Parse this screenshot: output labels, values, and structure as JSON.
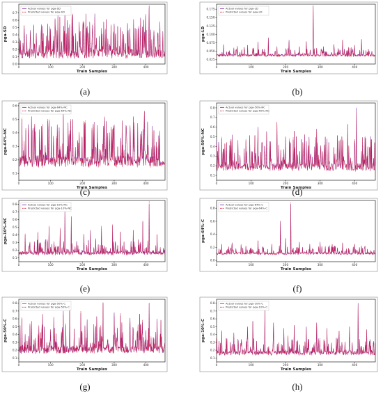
{
  "chart_data": [
    {
      "panel_label": "(a)",
      "type": "line",
      "xlabel": "Train Samples",
      "ylabel": "pga-SD",
      "xticks": [
        0,
        100,
        200,
        300,
        400
      ],
      "yticks": [
        "0.0",
        "0.1",
        "0.2",
        "0.3",
        "0.4",
        "0.5",
        "0.6",
        "0.7"
      ],
      "ylim": [
        0.0,
        0.82
      ],
      "xlim": [
        0,
        460
      ],
      "series": [
        {
          "name": "Actual values for pga-SD",
          "color": "#7b1fa2",
          "style": "solid"
        },
        {
          "name": "Predicted values for pga-SD",
          "color": "#d8203a",
          "style": "dashed"
        }
      ],
      "baseline": 0.08,
      "spike_scale": 0.5,
      "peaks": [
        [
          5,
          0.32
        ],
        [
          25,
          0.41
        ],
        [
          50,
          0.27
        ],
        [
          70,
          0.4
        ],
        [
          100,
          0.48
        ],
        [
          120,
          0.46
        ],
        [
          145,
          0.75
        ],
        [
          160,
          0.54
        ],
        [
          185,
          0.31
        ],
        [
          205,
          0.56
        ],
        [
          220,
          0.43
        ],
        [
          240,
          0.36
        ],
        [
          260,
          0.47
        ],
        [
          290,
          0.52
        ],
        [
          300,
          0.55
        ],
        [
          330,
          0.41
        ],
        [
          350,
          0.37
        ],
        [
          370,
          0.48
        ],
        [
          395,
          0.44
        ],
        [
          410,
          0.8
        ],
        [
          430,
          0.23
        ]
      ],
      "seed": 11
    },
    {
      "panel_label": "(b)",
      "type": "line",
      "xlabel": "Train Samples",
      "ylabel": "pga-LD",
      "xticks": [
        0,
        100,
        200,
        300,
        400
      ],
      "yticks": [
        "0.025",
        "0.050",
        "0.075",
        "0.100",
        "0.125",
        "0.150",
        "0.175"
      ],
      "ylim": [
        0.012,
        0.19
      ],
      "xlim": [
        0,
        460
      ],
      "series": [
        {
          "name": "Actual values for pga-LD",
          "color": "#7b1fa2",
          "style": "solid"
        },
        {
          "name": "Predicted values for pga-LD",
          "color": "#d8203a",
          "style": "dashed"
        }
      ],
      "baseline": 0.035,
      "spike_scale": 0.022,
      "peaks": [
        [
          20,
          0.07
        ],
        [
          60,
          0.065
        ],
        [
          90,
          0.068
        ],
        [
          120,
          0.078
        ],
        [
          150,
          0.09
        ],
        [
          175,
          0.064
        ],
        [
          210,
          0.083
        ],
        [
          240,
          0.063
        ],
        [
          260,
          0.078
        ],
        [
          280,
          0.186
        ],
        [
          310,
          0.064
        ],
        [
          340,
          0.07
        ],
        [
          365,
          0.082
        ],
        [
          400,
          0.068
        ],
        [
          420,
          0.085
        ]
      ],
      "seed": 23
    },
    {
      "panel_label": "(c)",
      "type": "line",
      "xlabel": "Train Samples",
      "ylabel": "pga-64%-NC",
      "xticks": [
        0,
        100,
        200,
        300,
        400
      ],
      "yticks": [
        "0.1",
        "0.2",
        "0.3",
        "0.4",
        "0.5",
        "0.6"
      ],
      "ylim": [
        0.05,
        0.62
      ],
      "xlim": [
        0,
        460
      ],
      "series": [
        {
          "name": "Actual values for pga-64%-NC",
          "color": "#7b1fa2",
          "style": "solid"
        },
        {
          "name": "Predicted values for pga-64%-NC",
          "color": "#d8203a",
          "style": "dashed"
        }
      ],
      "baseline": 0.15,
      "spike_scale": 0.3,
      "peaks": [
        [
          10,
          0.5
        ],
        [
          40,
          0.52
        ],
        [
          75,
          0.45
        ],
        [
          95,
          0.49
        ],
        [
          140,
          0.55
        ],
        [
          170,
          0.5
        ],
        [
          205,
          0.47
        ],
        [
          230,
          0.42
        ],
        [
          270,
          0.51
        ],
        [
          300,
          0.46
        ],
        [
          325,
          0.49
        ],
        [
          360,
          0.52
        ],
        [
          395,
          0.56
        ],
        [
          420,
          0.45
        ]
      ],
      "seed": 37
    },
    {
      "panel_label": "(d)",
      "type": "line",
      "xlabel": "Train Samples",
      "ylabel": "pga-50%-NC",
      "xticks": [
        0,
        100,
        200,
        300,
        400
      ],
      "yticks": [
        "0.1",
        "0.2",
        "0.3",
        "0.4",
        "0.5",
        "0.6",
        "0.7",
        "0.8"
      ],
      "ylim": [
        0.05,
        0.85
      ],
      "xlim": [
        0,
        460
      ],
      "series": [
        {
          "name": "Actual values for pga-50%-NC",
          "color": "#7b1fa2",
          "style": "solid"
        },
        {
          "name": "Predicted values for pga-50%-NC",
          "color": "#d8203a",
          "style": "dashed"
        }
      ],
      "baseline": 0.15,
      "spike_scale": 0.3,
      "peaks": [
        [
          15,
          0.48
        ],
        [
          45,
          0.52
        ],
        [
          85,
          0.46
        ],
        [
          120,
          0.6
        ],
        [
          145,
          0.55
        ],
        [
          175,
          0.64
        ],
        [
          200,
          0.5
        ],
        [
          225,
          0.56
        ],
        [
          255,
          0.52
        ],
        [
          290,
          0.58
        ],
        [
          320,
          0.48
        ],
        [
          350,
          0.51
        ],
        [
          380,
          0.63
        ],
        [
          405,
          0.8
        ],
        [
          430,
          0.5
        ]
      ],
      "seed": 41
    },
    {
      "panel_label": "(e)",
      "type": "line",
      "xlabel": "Train Samples",
      "ylabel": "pga-10%-NC",
      "xticks": [
        0,
        100,
        200,
        300,
        400
      ],
      "yticks": [
        "0.1",
        "0.2",
        "0.3",
        "0.4",
        "0.5",
        "0.6",
        "0.7",
        "0.8"
      ],
      "ylim": [
        0.05,
        0.85
      ],
      "xlim": [
        0,
        460
      ],
      "series": [
        {
          "name": "Actual values for pga-10%-NC",
          "color": "#7b1fa2",
          "style": "solid"
        },
        {
          "name": "Predicted values for pga-10%-NC",
          "color": "#d8203a",
          "style": "dashed"
        }
      ],
      "baseline": 0.14,
      "spike_scale": 0.18,
      "peaks": [
        [
          20,
          0.4
        ],
        [
          60,
          0.42
        ],
        [
          95,
          0.5
        ],
        [
          130,
          0.47
        ],
        [
          145,
          0.73
        ],
        [
          165,
          0.64
        ],
        [
          205,
          0.41
        ],
        [
          225,
          0.46
        ],
        [
          260,
          0.49
        ],
        [
          295,
          0.52
        ],
        [
          320,
          0.44
        ],
        [
          360,
          0.46
        ],
        [
          390,
          0.58
        ],
        [
          410,
          0.8
        ],
        [
          435,
          0.4
        ]
      ],
      "seed": 53
    },
    {
      "panel_label": "(f)",
      "type": "line",
      "xlabel": "Train Samples",
      "ylabel": "pga-64%-C",
      "xticks": [
        0,
        100,
        200,
        300,
        400
      ],
      "yticks": [
        "0.0",
        "0.2",
        "0.4",
        "0.6",
        "0.8"
      ],
      "ylim": [
        -0.02,
        0.92
      ],
      "xlim": [
        0,
        460
      ],
      "series": [
        {
          "name": "Actual values for pga-64%-C",
          "color": "#7b1fa2",
          "style": "solid"
        },
        {
          "name": "Predicted values for pga-64%-C",
          "color": "#d8203a",
          "style": "dashed"
        }
      ],
      "baseline": 0.09,
      "spike_scale": 0.12,
      "peaks": [
        [
          15,
          0.25
        ],
        [
          45,
          0.27
        ],
        [
          85,
          0.22
        ],
        [
          120,
          0.3
        ],
        [
          160,
          0.25
        ],
        [
          185,
          0.6
        ],
        [
          200,
          0.33
        ],
        [
          215,
          0.86
        ],
        [
          240,
          0.28
        ],
        [
          270,
          0.25
        ],
        [
          300,
          0.28
        ],
        [
          335,
          0.24
        ],
        [
          365,
          0.27
        ],
        [
          400,
          0.25
        ],
        [
          430,
          0.22
        ]
      ],
      "seed": 67
    },
    {
      "panel_label": "(g)",
      "type": "line",
      "xlabel": "Train Samples",
      "ylabel": "pga-50%-C",
      "xticks": [
        0,
        100,
        200,
        300,
        400
      ],
      "yticks": [
        "0.1",
        "0.2",
        "0.3",
        "0.4",
        "0.5",
        "0.6",
        "0.7",
        "0.8"
      ],
      "ylim": [
        0.05,
        0.85
      ],
      "xlim": [
        0,
        460
      ],
      "series": [
        {
          "name": "Actual values for pga-50%-C",
          "color": "#7b1fa2",
          "style": "solid"
        },
        {
          "name": "Predicted values for pga-50%-C",
          "color": "#d8203a",
          "style": "dashed"
        }
      ],
      "baseline": 0.16,
      "spike_scale": 0.35,
      "peaks": [
        [
          10,
          0.6
        ],
        [
          40,
          0.57
        ],
        [
          75,
          0.66
        ],
        [
          110,
          0.62
        ],
        [
          140,
          0.7
        ],
        [
          160,
          0.78
        ],
        [
          195,
          0.67
        ],
        [
          215,
          0.59
        ],
        [
          245,
          0.63
        ],
        [
          265,
          0.8
        ],
        [
          300,
          0.68
        ],
        [
          320,
          0.64
        ],
        [
          350,
          0.61
        ],
        [
          380,
          0.66
        ],
        [
          410,
          0.8
        ],
        [
          435,
          0.6
        ]
      ],
      "seed": 79
    },
    {
      "panel_label": "(h)",
      "type": "line",
      "xlabel": "Train Samples",
      "ylabel": "pga-10%-C",
      "xticks": [
        0,
        100,
        200,
        300,
        400
      ],
      "yticks": [
        "0.1",
        "0.2",
        "0.3",
        "0.4",
        "0.5",
        "0.6",
        "0.7",
        "0.8"
      ],
      "ylim": [
        0.05,
        0.85
      ],
      "xlim": [
        0,
        460
      ],
      "series": [
        {
          "name": "Actual values for pga-10%-C",
          "color": "#7b1fa2",
          "style": "solid"
        },
        {
          "name": "Predicted values for pga-10%-C",
          "color": "#d8203a",
          "style": "dashed"
        }
      ],
      "baseline": 0.14,
      "spike_scale": 0.2,
      "peaks": [
        [
          15,
          0.45
        ],
        [
          50,
          0.42
        ],
        [
          90,
          0.5
        ],
        [
          105,
          0.57
        ],
        [
          140,
          0.72
        ],
        [
          165,
          0.55
        ],
        [
          195,
          0.48
        ],
        [
          225,
          0.52
        ],
        [
          260,
          0.5
        ],
        [
          290,
          0.55
        ],
        [
          320,
          0.48
        ],
        [
          355,
          0.44
        ],
        [
          385,
          0.5
        ],
        [
          410,
          0.8
        ],
        [
          435,
          0.45
        ]
      ],
      "seed": 89
    }
  ]
}
